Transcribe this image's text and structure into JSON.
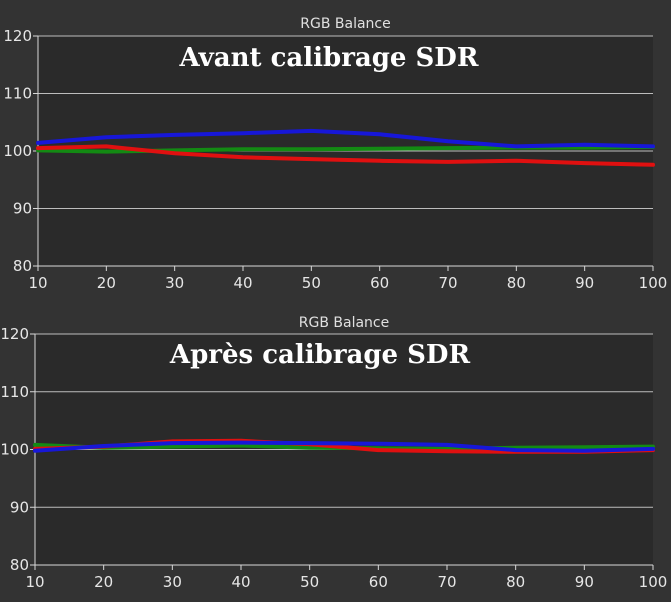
{
  "colors": {
    "background": "#333333",
    "plot": "#2a2a2a",
    "red": "#e01010",
    "green": "#138a13",
    "blue": "#1717d8"
  },
  "chart_data": [
    {
      "type": "line",
      "title": "RGB Balance",
      "annotation": "Avant calibrage SDR",
      "x": [
        10,
        20,
        30,
        40,
        50,
        60,
        70,
        80,
        90,
        100
      ],
      "xticks": [
        "10",
        "20",
        "30",
        "40",
        "50",
        "60",
        "70",
        "80",
        "90",
        "100"
      ],
      "yticks": [
        "80",
        "90",
        "100",
        "110",
        "120"
      ],
      "xlim": [
        10,
        100
      ],
      "ylim": [
        80,
        120
      ],
      "grid": "horizontal",
      "series": [
        {
          "color": "#138a13",
          "values": [
            100.1,
            99.9,
            100.1,
            100.3,
            100.3,
            100.4,
            100.5,
            100.6,
            100.6,
            100.7
          ]
        },
        {
          "color": "#e01010",
          "values": [
            100.5,
            100.8,
            99.6,
            98.9,
            98.6,
            98.3,
            98.1,
            98.3,
            97.9,
            97.6
          ]
        },
        {
          "color": "#1717d8",
          "values": [
            101.4,
            102.4,
            102.8,
            103.1,
            103.5,
            102.9,
            101.7,
            100.8,
            101.1,
            100.8
          ]
        }
      ]
    },
    {
      "type": "line",
      "title": "RGB Balance",
      "annotation": "Après calibrage SDR",
      "x": [
        10,
        20,
        30,
        40,
        50,
        60,
        70,
        80,
        90,
        100
      ],
      "xticks": [
        "10",
        "20",
        "30",
        "40",
        "50",
        "60",
        "70",
        "80",
        "90",
        "100"
      ],
      "yticks": [
        "80",
        "90",
        "100",
        "110",
        "120"
      ],
      "xlim": [
        10,
        100
      ],
      "ylim": [
        80,
        120
      ],
      "grid": "horizontal",
      "series": [
        {
          "color": "#138a13",
          "values": [
            100.8,
            100.3,
            100.5,
            100.7,
            100.3,
            100.2,
            100.1,
            100.3,
            100.4,
            100.5
          ]
        },
        {
          "color": "#e01010",
          "values": [
            100.1,
            100.5,
            101.4,
            101.5,
            100.9,
            99.9,
            99.7,
            99.6,
            99.6,
            99.9
          ]
        },
        {
          "color": "#1717d8",
          "values": [
            99.8,
            100.6,
            101.1,
            101.2,
            101.1,
            101.0,
            100.8,
            99.9,
            99.8,
            100.1
          ]
        }
      ]
    }
  ]
}
